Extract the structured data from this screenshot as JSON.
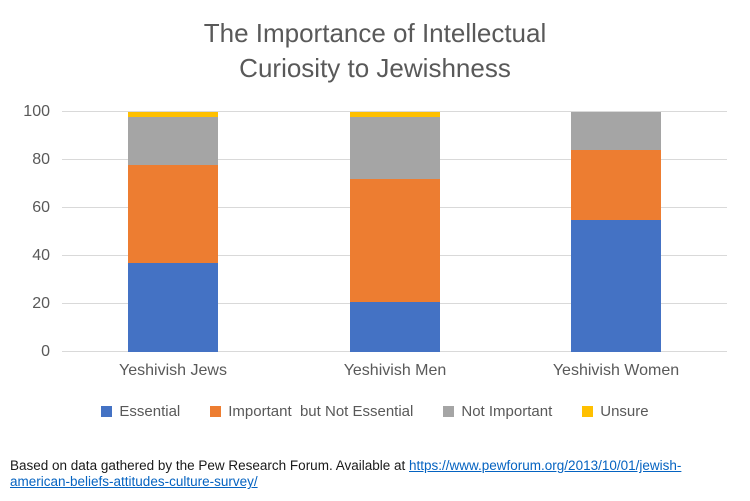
{
  "title": {
    "line1": "The Importance of Intellectual",
    "line2": "Curiosity to Jewishness"
  },
  "chart_data": {
    "type": "bar",
    "stacked": true,
    "title": "The Importance of Intellectual Curiosity to Jewishness",
    "categories": [
      "Yeshivish Jews",
      "Yeshivish Men",
      "Yeshivish Women"
    ],
    "series": [
      {
        "name": "Essential",
        "color": "#4472C4",
        "values": [
          37,
          21,
          55
        ]
      },
      {
        "name": "Important  but Not Essential",
        "color": "#ED7D31",
        "values": [
          41,
          51,
          29
        ]
      },
      {
        "name": "Not Important",
        "color": "#A5A5A5",
        "values": [
          20,
          26,
          16
        ]
      },
      {
        "name": "Unsure",
        "color": "#FFC000",
        "values": [
          2,
          2,
          0
        ]
      }
    ],
    "ylim": [
      0,
      100
    ],
    "yticks": [
      0,
      20,
      40,
      60,
      80,
      100
    ],
    "grid": true,
    "legend_position": "bottom",
    "gridline_color": "#D9D9D9",
    "text_color": "#595959"
  },
  "footer": {
    "text": "Based on data gathered by the Pew Research Forum. Available at ",
    "link_line1": "https://www.pewforum.org/2013/10/01/jewish-",
    "link_line2": "american-beliefs-attitudes-culture-survey/"
  }
}
